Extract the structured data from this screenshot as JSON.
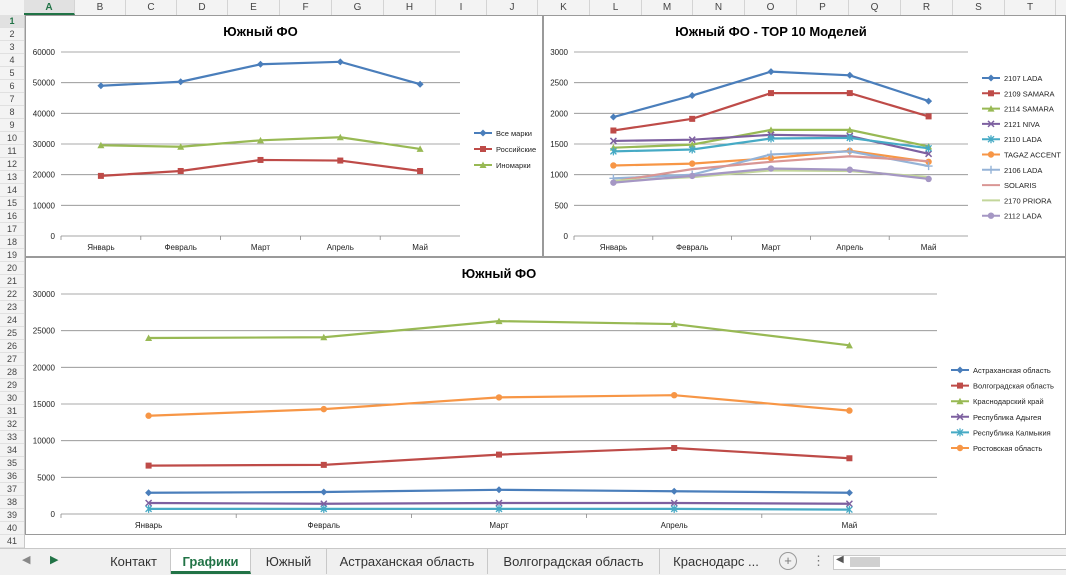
{
  "columns": [
    "A",
    "B",
    "C",
    "D",
    "E",
    "F",
    "G",
    "H",
    "I",
    "J",
    "K",
    "L",
    "M",
    "N",
    "O",
    "P",
    "Q",
    "R",
    "S",
    "T"
  ],
  "selected_column": "A",
  "rows": [
    "1",
    "2",
    "3",
    "4",
    "5",
    "6",
    "7",
    "8",
    "9",
    "10",
    "11",
    "12",
    "13",
    "14",
    "15",
    "16",
    "17",
    "18",
    "19",
    "20",
    "21",
    "22",
    "23",
    "24",
    "25",
    "26",
    "27",
    "28",
    "29",
    "30",
    "31",
    "32",
    "33",
    "34",
    "35",
    "36",
    "37",
    "38",
    "39",
    "40",
    "41"
  ],
  "selected_row": "1",
  "chart_data": [
    {
      "type": "line",
      "title": "Южный ФО",
      "categories": [
        "Январь",
        "Февраль",
        "Март",
        "Апрель",
        "Май"
      ],
      "ylim": [
        0,
        60000
      ],
      "yticks": [
        "0",
        "10000",
        "20000",
        "30000",
        "40000",
        "50000",
        "60000"
      ],
      "grid": true,
      "legend": "right",
      "series": [
        {
          "name": "Все марки",
          "color": "#4a7ebb",
          "marker": "diamond",
          "values": [
            49000,
            50300,
            56000,
            56800,
            49500
          ]
        },
        {
          "name": "Российские",
          "color": "#be4b48",
          "marker": "square",
          "values": [
            19600,
            21200,
            24800,
            24600,
            21200
          ]
        },
        {
          "name": "Иномарки",
          "color": "#98b954",
          "marker": "triangle",
          "values": [
            29600,
            29100,
            31200,
            32200,
            28400
          ]
        }
      ]
    },
    {
      "type": "line",
      "title": "Южный ФО - TOP 10 Моделей",
      "categories": [
        "Январь",
        "Февраль",
        "Март",
        "Апрель",
        "Май"
      ],
      "ylim": [
        0,
        3000
      ],
      "yticks": [
        "0",
        "500",
        "1000",
        "1500",
        "2000",
        "2500",
        "3000"
      ],
      "grid": true,
      "legend": "right",
      "series": [
        {
          "name": "2107 LADA",
          "color": "#4a7ebb",
          "marker": "diamond",
          "values": [
            1940,
            2290,
            2680,
            2620,
            2200
          ]
        },
        {
          "name": "2109 SAMARA",
          "color": "#be4b48",
          "marker": "square",
          "values": [
            1720,
            1910,
            2330,
            2330,
            1950
          ]
        },
        {
          "name": "2114 SAMARA",
          "color": "#98b954",
          "marker": "triangle",
          "values": [
            1440,
            1490,
            1730,
            1730,
            1460
          ]
        },
        {
          "name": "2121 NIVA",
          "color": "#7d60a0",
          "marker": "x",
          "values": [
            1550,
            1570,
            1650,
            1630,
            1340
          ]
        },
        {
          "name": "2110 LADA",
          "color": "#46aac5",
          "marker": "star",
          "values": [
            1380,
            1410,
            1590,
            1600,
            1430
          ]
        },
        {
          "name": "TAGAZ ACCENT",
          "color": "#f79646",
          "marker": "circle",
          "values": [
            1150,
            1180,
            1270,
            1390,
            1210
          ]
        },
        {
          "name": "2106 LADA",
          "color": "#95b3d7",
          "marker": "plus",
          "values": [
            940,
            1000,
            1330,
            1380,
            1140
          ]
        },
        {
          "name": "SOLARIS",
          "color": "#d99694",
          "marker": "none",
          "values": [
            890,
            1090,
            1210,
            1300,
            1220
          ]
        },
        {
          "name": "2170 PRIORA",
          "color": "#c3d69b",
          "marker": "none",
          "values": [
            900,
            960,
            1070,
            1060,
            960
          ]
        },
        {
          "name": "2112 LADA",
          "color": "#a597c4",
          "marker": "circle",
          "values": [
            870,
            980,
            1100,
            1080,
            930
          ]
        }
      ]
    },
    {
      "type": "line",
      "title": "Южный ФО",
      "categories": [
        "Январь",
        "Февраль",
        "Март",
        "Апрель",
        "Май"
      ],
      "ylim": [
        0,
        30000
      ],
      "yticks": [
        "0",
        "5000",
        "10000",
        "15000",
        "20000",
        "25000",
        "30000"
      ],
      "grid": true,
      "legend": "right",
      "series": [
        {
          "name": "Астраханская область",
          "color": "#4a7ebb",
          "marker": "diamond",
          "values": [
            2900,
            3000,
            3300,
            3100,
            2900
          ]
        },
        {
          "name": "Волгоградская область",
          "color": "#be4b48",
          "marker": "square",
          "values": [
            6600,
            6700,
            8100,
            9000,
            7600
          ]
        },
        {
          "name": "Краснодарский край",
          "color": "#98b954",
          "marker": "triangle",
          "values": [
            24000,
            24100,
            26300,
            25900,
            23000
          ]
        },
        {
          "name": "Республика Адыгея",
          "color": "#7d60a0",
          "marker": "x",
          "values": [
            1500,
            1400,
            1500,
            1500,
            1400
          ]
        },
        {
          "name": "Республика Калмыкия",
          "color": "#46aac5",
          "marker": "star",
          "values": [
            700,
            700,
            700,
            700,
            600
          ]
        },
        {
          "name": "Ростовская область",
          "color": "#f79646",
          "marker": "circle",
          "values": [
            13400,
            14300,
            15900,
            16200,
            14100
          ]
        }
      ]
    }
  ],
  "tabs": {
    "items": [
      "Контакт",
      "Графики",
      "Южный",
      "Астраханская область",
      "Волгоградская область",
      "Краснодарс ..."
    ],
    "active": "Графики"
  },
  "colors": {
    "excel_green": "#217346"
  }
}
